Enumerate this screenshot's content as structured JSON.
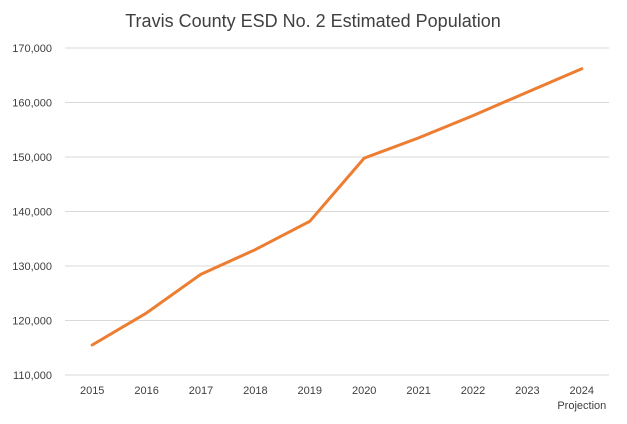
{
  "chart_data": {
    "type": "line",
    "title": "Travis County ESD No. 2 Estimated Population",
    "xlabel": "",
    "ylabel": "",
    "categories": [
      "2015",
      "2016",
      "2017",
      "2018",
      "2019",
      "2020",
      "2021",
      "2022",
      "2023",
      "2024"
    ],
    "category_sublabels": {
      "2024": "Projection"
    },
    "series": [
      {
        "values": [
          115500,
          121400,
          128500,
          133000,
          138200,
          149800,
          153500,
          157600,
          161900,
          166200
        ],
        "color": "#ed7d31"
      }
    ],
    "ylim": [
      110000,
      170000
    ],
    "yticks": [
      110000,
      120000,
      130000,
      140000,
      150000,
      160000,
      170000
    ],
    "ytick_labels": [
      "110,000",
      "120,000",
      "130,000",
      "140,000",
      "150,000",
      "160,000",
      "170,000"
    ],
    "grid": true,
    "legend": "none"
  }
}
